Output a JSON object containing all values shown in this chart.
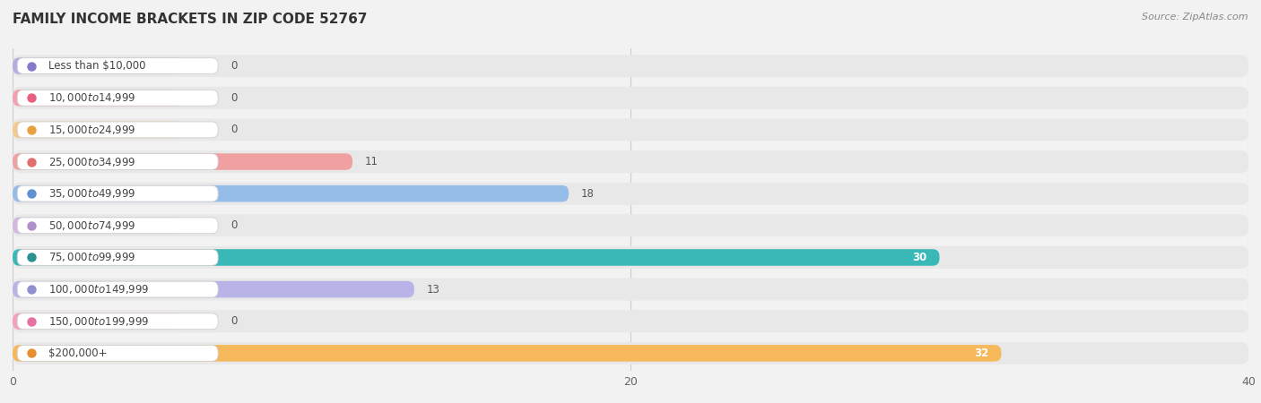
{
  "title": "FAMILY INCOME BRACKETS IN ZIP CODE 52767",
  "source": "Source: ZipAtlas.com",
  "categories": [
    "Less than $10,000",
    "$10,000 to $14,999",
    "$15,000 to $24,999",
    "$25,000 to $34,999",
    "$35,000 to $49,999",
    "$50,000 to $74,999",
    "$75,000 to $99,999",
    "$100,000 to $149,999",
    "$150,000 to $199,999",
    "$200,000+"
  ],
  "values": [
    0,
    0,
    0,
    11,
    18,
    0,
    30,
    13,
    0,
    32
  ],
  "bar_colors": [
    "#b3aee0",
    "#f4a0b0",
    "#f5c98a",
    "#f0a0a0",
    "#96bce8",
    "#d4b8e0",
    "#3ab8b8",
    "#b8b4e8",
    "#f4a0c0",
    "#f5b85a"
  ],
  "dot_colors": [
    "#8878cc",
    "#e86080",
    "#e8a040",
    "#e07070",
    "#6090d0",
    "#b090cc",
    "#2a9090",
    "#9090d0",
    "#e870a0",
    "#e89030"
  ],
  "background_color": "#f2f2f2",
  "row_bg_color": "#e8e8e8",
  "xlim_max": 40,
  "xticks": [
    0,
    20,
    40
  ],
  "title_fontsize": 11,
  "label_fontsize": 8.5,
  "value_fontsize": 8.5,
  "source_fontsize": 8
}
